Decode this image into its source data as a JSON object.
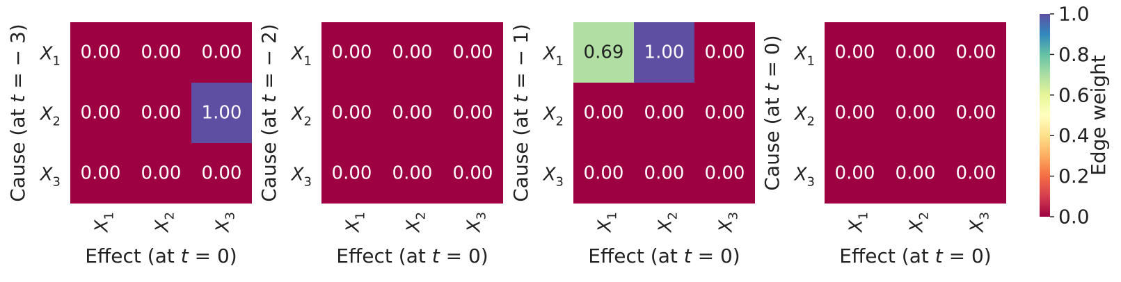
{
  "chart_data": [
    {
      "type": "heatmap",
      "ylabel_parts": [
        "Cause (at ",
        "t",
        " = − 3)"
      ],
      "xlabel_parts": [
        "Effect (at ",
        "t",
        " = 0)"
      ],
      "row_labels": [
        "X1",
        "X2",
        "X3"
      ],
      "col_labels": [
        "X1",
        "X2",
        "X3"
      ],
      "values": [
        [
          0.0,
          0.0,
          0.0
        ],
        [
          0.0,
          0.0,
          1.0
        ],
        [
          0.0,
          0.0,
          0.0
        ]
      ]
    },
    {
      "type": "heatmap",
      "ylabel_parts": [
        "Cause (at ",
        "t",
        " = − 2)"
      ],
      "xlabel_parts": [
        "Effect (at ",
        "t",
        " = 0)"
      ],
      "row_labels": [
        "X1",
        "X2",
        "X3"
      ],
      "col_labels": [
        "X1",
        "X2",
        "X3"
      ],
      "values": [
        [
          0.0,
          0.0,
          0.0
        ],
        [
          0.0,
          0.0,
          0.0
        ],
        [
          0.0,
          0.0,
          0.0
        ]
      ]
    },
    {
      "type": "heatmap",
      "ylabel_parts": [
        "Cause (at ",
        "t",
        " = − 1)"
      ],
      "xlabel_parts": [
        "Effect (at ",
        "t",
        " = 0)"
      ],
      "row_labels": [
        "X1",
        "X2",
        "X3"
      ],
      "col_labels": [
        "X1",
        "X2",
        "X3"
      ],
      "values": [
        [
          0.69,
          1.0,
          0.0
        ],
        [
          0.0,
          0.0,
          0.0
        ],
        [
          0.0,
          0.0,
          0.0
        ]
      ]
    },
    {
      "type": "heatmap",
      "ylabel_parts": [
        "Cause (at ",
        "t",
        " = 0)"
      ],
      "xlabel_parts": [
        "Effect (at ",
        "t",
        " = 0)"
      ],
      "row_labels": [
        "X1",
        "X2",
        "X3"
      ],
      "col_labels": [
        "X1",
        "X2",
        "X3"
      ],
      "values": [
        [
          0.0,
          0.0,
          0.0
        ],
        [
          0.0,
          0.0,
          0.0
        ],
        [
          0.0,
          0.0,
          0.0
        ]
      ]
    }
  ],
  "colorbar": {
    "label": "Edge weight",
    "range": [
      0.0,
      1.0
    ],
    "ticks": [
      "0.0",
      "0.2",
      "0.4",
      "0.6",
      "0.8",
      "1.0"
    ],
    "colormap": "Spectral",
    "stops": [
      "#9e0142",
      "#d53e4f",
      "#f46d43",
      "#fdae61",
      "#fee08b",
      "#ffffbf",
      "#e6f598",
      "#abdda4",
      "#66c2a5",
      "#3288bd",
      "#5e4fa2"
    ]
  }
}
